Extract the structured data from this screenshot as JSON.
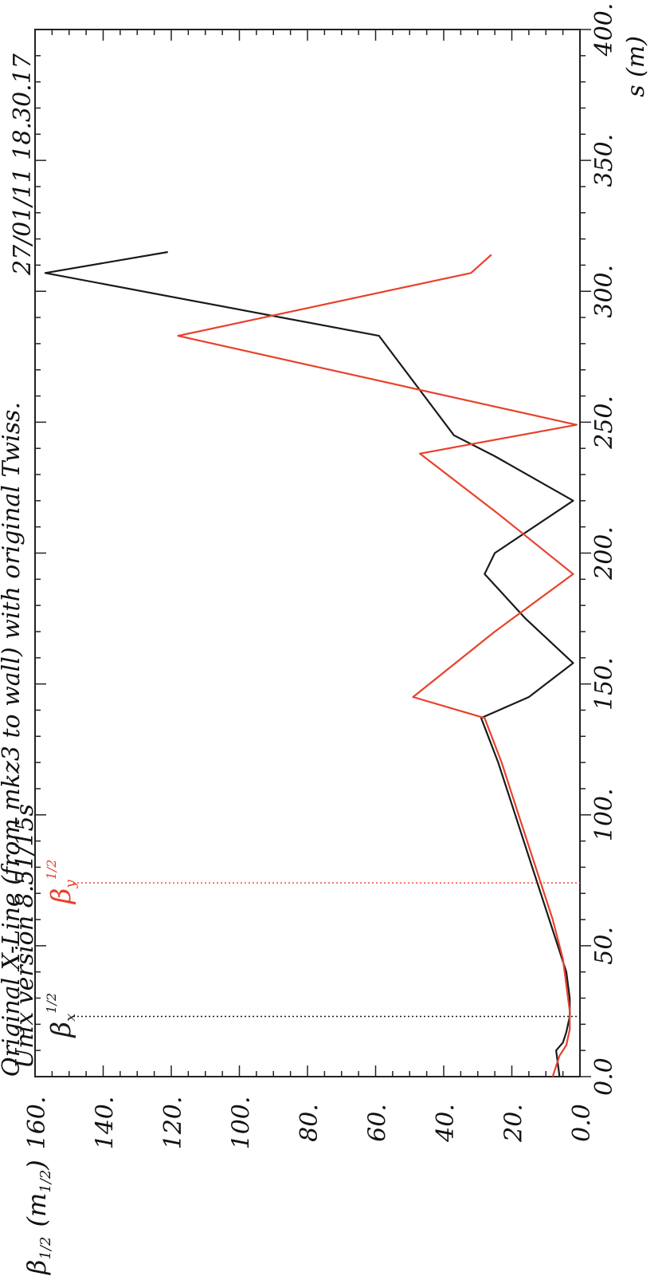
{
  "chart_data": {
    "type": "line",
    "orientation": "rotated-90-ccw",
    "header": {
      "title": "Original X-Line (from mkz3 to wall) with original Twiss.",
      "version": "Unix version 8.51/15s",
      "date": "27/01/11  18.30.17"
    },
    "xlabel": "s (m)",
    "ylabel": "β",
    "ylabel_sub": "1/2",
    "ylabel_unit": "(m",
    "ylabel_unit_sub": "1/2",
    "ylabel_unit_close": ")",
    "xlim": [
      0,
      400
    ],
    "ylim": [
      0,
      160
    ],
    "x_ticks": [
      "0.0",
      "50.",
      "100.",
      "150.",
      "200.",
      "250.",
      "300.",
      "350.",
      "400."
    ],
    "y_ticks": [
      "0.0",
      "20.",
      "40.",
      "60.",
      "80.",
      "100.",
      "120.",
      "140.",
      "160."
    ],
    "series": [
      {
        "name": "βx",
        "legend_symbol": "β",
        "legend_sub": "x",
        "legend_sup": "1/2",
        "color": "#1a1a1a",
        "legend_s": 23,
        "s": [
          0,
          10,
          13,
          17,
          23,
          30,
          40,
          60,
          80,
          100,
          120,
          137,
          145,
          158,
          175,
          192,
          200,
          220,
          237,
          245,
          283,
          307,
          315
        ],
        "values": [
          6,
          7,
          5,
          4,
          3,
          3,
          4,
          9,
          14,
          19,
          24,
          29,
          15,
          2,
          16,
          28,
          25,
          2,
          25,
          37,
          59,
          157,
          121
        ]
      },
      {
        "name": "βy",
        "legend_symbol": "β",
        "legend_sub": "y",
        "legend_sup": "1/2",
        "color": "#e8412c",
        "legend_s": 74,
        "s": [
          0,
          8,
          12,
          18,
          25,
          35,
          45,
          60,
          80,
          100,
          120,
          137,
          145,
          170,
          192,
          215,
          238,
          249,
          283,
          307,
          314
        ],
        "values": [
          8,
          6,
          4,
          3,
          3,
          4,
          5,
          8,
          13,
          18,
          23,
          28,
          49,
          25,
          2,
          24,
          47,
          1,
          118,
          32,
          26
        ]
      }
    ]
  }
}
